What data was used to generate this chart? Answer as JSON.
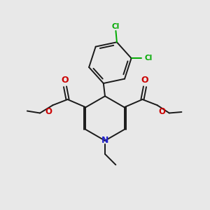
{
  "background_color": "#e8e8e8",
  "bond_color": "#1a1a1a",
  "nitrogen_color": "#2222cc",
  "oxygen_color": "#cc0000",
  "chlorine_color": "#00aa00",
  "figsize": [
    3.0,
    3.0
  ],
  "dpi": 100,
  "xlim": [
    0,
    10
  ],
  "ylim": [
    0,
    10
  ]
}
